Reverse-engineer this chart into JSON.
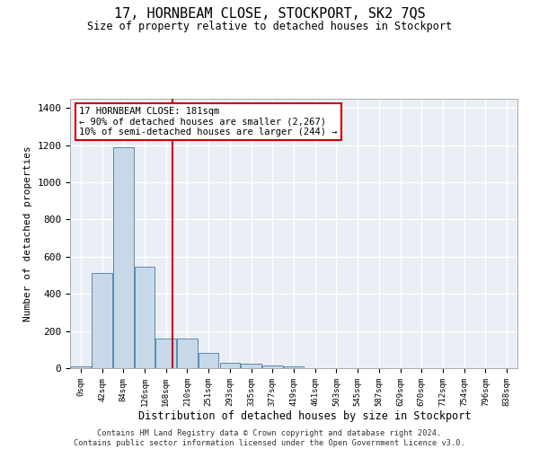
{
  "title": "17, HORNBEAM CLOSE, STOCKPORT, SK2 7QS",
  "subtitle": "Size of property relative to detached houses in Stockport",
  "xlabel": "Distribution of detached houses by size in Stockport",
  "ylabel": "Number of detached properties",
  "bar_color": "#c8d8e8",
  "bar_edge_color": "#5a8ab0",
  "background_color": "#e8eef4",
  "grid_color": "#ffffff",
  "categories": [
    "0sqm",
    "42sqm",
    "84sqm",
    "126sqm",
    "168sqm",
    "210sqm",
    "251sqm",
    "293sqm",
    "335sqm",
    "377sqm",
    "419sqm",
    "461sqm",
    "503sqm",
    "545sqm",
    "587sqm",
    "629sqm",
    "670sqm",
    "712sqm",
    "754sqm",
    "796sqm",
    "838sqm"
  ],
  "values": [
    10,
    510,
    1190,
    545,
    160,
    160,
    80,
    30,
    22,
    15,
    10,
    0,
    0,
    0,
    0,
    0,
    0,
    0,
    0,
    0,
    0
  ],
  "ylim": [
    0,
    1450
  ],
  "yticks": [
    0,
    200,
    400,
    600,
    800,
    1000,
    1200,
    1400
  ],
  "annotation_box_text": "17 HORNBEAM CLOSE: 181sqm\n← 90% of detached houses are smaller (2,267)\n10% of semi-detached houses are larger (244) →",
  "vline_x_index": 4.31,
  "vline_color": "#cc0000",
  "footer_text": "Contains HM Land Registry data © Crown copyright and database right 2024.\nContains public sector information licensed under the Open Government Licence v3.0.",
  "fig_width": 6.0,
  "fig_height": 5.0,
  "dpi": 100
}
